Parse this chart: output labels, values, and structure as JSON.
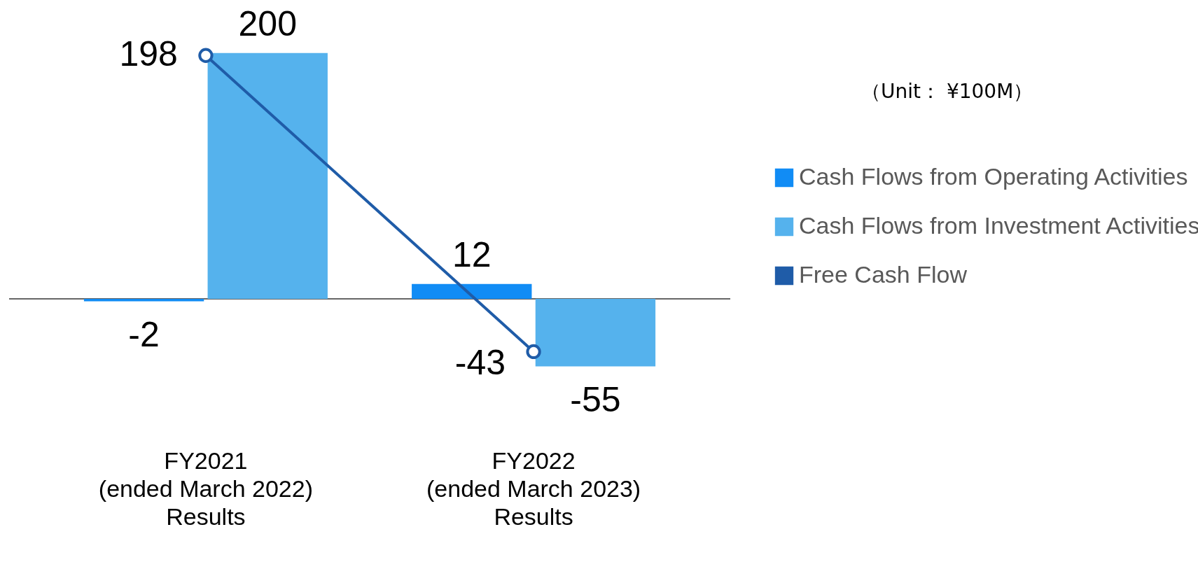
{
  "chart_data": {
    "type": "bar",
    "categories": [
      "FY2021\n(ended March 2022)\nResults",
      "FY2022\n(ended March 2023)\nResults"
    ],
    "series": [
      {
        "name": "Cash Flows from Operating Activities",
        "color": "#118cf5",
        "values": [
          -2,
          12
        ]
      },
      {
        "name": "Cash Flows from Investment Activities",
        "color": "#55b2ed",
        "values": [
          200,
          -55
        ]
      },
      {
        "name": "Free Cash Flow",
        "type": "line",
        "color": "#1f5ca8",
        "values": [
          198,
          -43
        ],
        "marker": "circle"
      }
    ],
    "data_labels": true,
    "legend": "right",
    "tick_labels": "x",
    "annotations": [
      "（Unit： ¥100M）"
    ]
  }
}
